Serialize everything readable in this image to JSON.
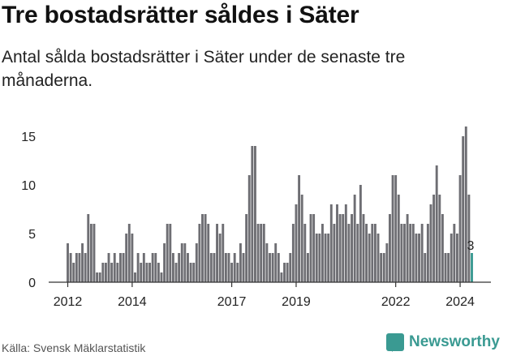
{
  "title": "Tre bostadsrätter såldes i Säter",
  "subtitle": "Antal sålda bostadsrätter i Säter under de senaste tre månaderna.",
  "source": "Källa: Svensk Mäklarstatistik",
  "brand": "Newsworthy",
  "colors": {
    "bar": "#6e6e73",
    "highlight": "#3a9a92",
    "axis": "#333333",
    "brand": "#3a9a92"
  },
  "chart_data": {
    "type": "bar",
    "ylim": [
      0,
      16.5
    ],
    "yticks": [
      0,
      5,
      10,
      15
    ],
    "xticks": [
      {
        "label": "2012",
        "index": 0
      },
      {
        "label": "2014",
        "index": 22
      },
      {
        "label": "2017",
        "index": 56
      },
      {
        "label": "2019",
        "index": 78
      },
      {
        "label": "2022",
        "index": 112
      },
      {
        "label": "2024",
        "index": 134
      }
    ],
    "values": [
      4,
      3,
      2,
      3,
      3,
      4,
      3,
      7,
      6,
      6,
      1,
      1,
      2,
      2,
      3,
      2,
      3,
      2,
      3,
      3,
      5,
      6,
      5,
      1,
      3,
      2,
      3,
      2,
      2,
      3,
      3,
      2,
      1,
      4,
      6,
      6,
      3,
      2,
      3,
      4,
      4,
      3,
      2,
      2,
      4,
      6,
      7,
      7,
      6,
      3,
      3,
      6,
      5,
      6,
      3,
      3,
      2,
      3,
      2,
      4,
      3,
      7,
      11,
      14,
      14,
      6,
      6,
      6,
      4,
      3,
      3,
      4,
      3,
      1,
      2,
      2,
      3,
      6,
      8,
      11,
      9,
      6,
      3,
      7,
      7,
      5,
      5,
      6,
      5,
      5,
      8,
      6,
      8,
      7,
      7,
      8,
      6,
      7,
      9,
      6,
      10,
      7,
      6,
      5,
      6,
      6,
      5,
      3,
      3,
      4,
      7,
      11,
      11,
      9,
      6,
      6,
      7,
      6,
      6,
      5,
      5,
      6,
      3,
      6,
      8,
      9,
      12,
      9,
      7,
      3,
      3,
      5,
      6,
      5,
      11,
      15,
      16,
      9,
      3
    ],
    "last_label": "3"
  }
}
